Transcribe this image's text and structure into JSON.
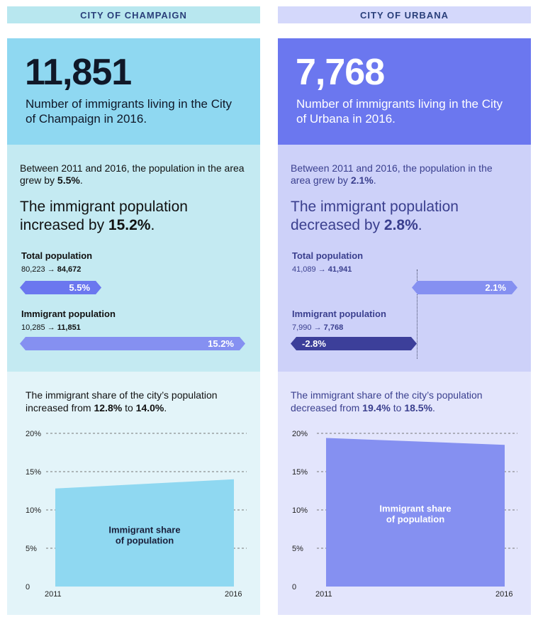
{
  "champaign": {
    "header": "CITY OF CHAMPAIGN",
    "big_number": "11,851",
    "caption": "Number of immigrants living in the City of Champaign in 2016.",
    "growth_pre": "Between 2011 and 2016, the population in the area grew by ",
    "growth_value": "5.5%",
    "growth_post": ".",
    "change_pre": "The immigrant population increased by ",
    "change_value": "15.2%",
    "change_post": ".",
    "total_title": "Total population",
    "total_from": "80,223 →",
    "total_to": "84,672",
    "total_bar_label": "5.5%",
    "total_bar_value": 5.5,
    "imm_title": "Immigrant population",
    "imm_from": "10,285 →",
    "imm_to": "11,851",
    "imm_bar_label": "15.2%",
    "imm_bar_value": 15.2,
    "share_pre": "The immigrant share of the city’s population increased from ",
    "share_from": "12.8%",
    "share_mid": " to ",
    "share_to": "14.0%",
    "share_post": ".",
    "area_label_1": "Immigrant share",
    "area_label_2": "of population"
  },
  "urbana": {
    "header": "CITY OF URBANA",
    "big_number": "7,768",
    "caption": "Number of immigrants living in the City of Urbana in 2016.",
    "growth_pre": "Between 2011 and 2016, the population in the area grew by ",
    "growth_value": "2.1%",
    "growth_post": ".",
    "change_pre": "The immigrant population decreased by ",
    "change_value": "2.8%",
    "change_post": ".",
    "total_title": "Total population",
    "total_from": "41,089 →",
    "total_to": "41,941",
    "total_bar_label": "2.1%",
    "total_bar_value": 2.1,
    "imm_title": "Immigrant population",
    "imm_from": "7,990 →",
    "imm_to": "7,768",
    "imm_bar_label": "-2.8%",
    "imm_bar_value": -2.8,
    "share_pre": "The immigrant share of the city’s population decreased from ",
    "share_from": "19.4%",
    "share_mid": " to ",
    "share_to": "18.5%",
    "share_post": ".",
    "area_label_1": "Immigrant share",
    "area_label_2": "of population"
  },
  "colors": {
    "champaign_area": "#8fd8f1",
    "urbana_area": "#8590f1",
    "champaign_bar_total": "#6b77ef",
    "champaign_bar_imm": "#8590f1",
    "urbana_bar_total": "#8590f1",
    "urbana_bar_imm": "#3c3f9a",
    "grid": "#777777",
    "tick_text": "#222222"
  },
  "chart_data": [
    {
      "type": "area",
      "x": [
        2011,
        2016
      ],
      "series": [
        {
          "name": "Immigrant share of population",
          "values": [
            12.8,
            14.0
          ]
        }
      ],
      "yticks": [
        "20%",
        "15%",
        "10%",
        "5%",
        "0"
      ],
      "xticks": [
        "2011",
        "2016"
      ],
      "ylim": [
        0,
        20
      ],
      "grid": true
    },
    {
      "type": "area",
      "x": [
        2011,
        2016
      ],
      "series": [
        {
          "name": "Immigrant share of population",
          "values": [
            19.4,
            18.5
          ]
        }
      ],
      "yticks": [
        "20%",
        "15%",
        "10%",
        "5%",
        "0"
      ],
      "xticks": [
        "2011",
        "2016"
      ],
      "ylim": [
        0,
        20
      ],
      "grid": true
    },
    {
      "type": "bar",
      "categories": [
        "Total population",
        "Immigrant population"
      ],
      "values": [
        5.5,
        15.2
      ]
    },
    {
      "type": "bar",
      "categories": [
        "Total population",
        "Immigrant population"
      ],
      "values": [
        2.1,
        -2.8
      ]
    }
  ]
}
